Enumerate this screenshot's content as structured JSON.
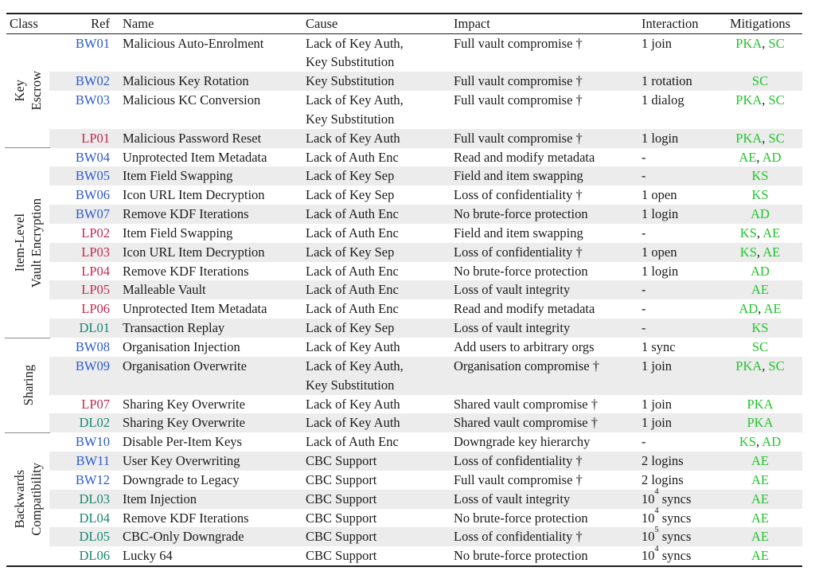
{
  "table": {
    "columns": [
      "Class",
      "Ref",
      "Name",
      "Cause",
      "Impact",
      "Interaction",
      "Mitigations"
    ],
    "colors": {
      "ref_bw": "#2D5AC8",
      "ref_lp": "#C12950",
      "ref_dl": "#16876E",
      "mitigation_green": "#23C32D",
      "stripe_gray": "#ECECEC",
      "rule_black": "#1f1f1f"
    },
    "dagger_symbol": "†",
    "groups": [
      {
        "class_label": [
          "Key",
          "Escrow"
        ],
        "rows": [
          {
            "ref": "BW01",
            "name": "Malicious Auto-Enrolment",
            "cause": [
              "Lack of Key Auth,",
              "Key Substitution"
            ],
            "impact": "Full vault compromise †",
            "interaction": "1 join",
            "mitigations": [
              "PKA",
              "SC"
            ]
          },
          {
            "ref": "BW02",
            "name": "Malicious Key Rotation",
            "cause": [
              "Key Substitution"
            ],
            "impact": "Full vault compromise †",
            "interaction": "1 rotation",
            "mitigations": [
              "SC"
            ]
          },
          {
            "ref": "BW03",
            "name": "Malicious KC Conversion",
            "cause": [
              "Lack of Key Auth,",
              "Key Substitution"
            ],
            "impact": "Full vault compromise †",
            "interaction": "1 dialog",
            "mitigations": [
              "PKA",
              "SC"
            ]
          },
          {
            "ref": "LP01",
            "name": "Malicious Password Reset",
            "cause": [
              "Lack of Key Auth"
            ],
            "impact": "Full vault compromise †",
            "interaction": "1 login",
            "mitigations": [
              "PKA",
              "SC"
            ]
          }
        ]
      },
      {
        "class_label": [
          "Item-Level",
          "Vault Encryption"
        ],
        "rows": [
          {
            "ref": "BW04",
            "name": "Unprotected Item Metadata",
            "cause": [
              "Lack of Auth Enc"
            ],
            "impact": "Read and modify metadata",
            "interaction": "-",
            "mitigations": [
              "AE",
              "AD"
            ]
          },
          {
            "ref": "BW05",
            "name": "Item Field Swapping",
            "cause": [
              "Lack of Key Sep"
            ],
            "impact": "Field and item swapping",
            "interaction": "-",
            "mitigations": [
              "KS"
            ]
          },
          {
            "ref": "BW06",
            "name": "Icon URL Item Decryption",
            "cause": [
              "Lack of Key Sep"
            ],
            "impact": "Loss of confidentiality †",
            "interaction": "1 open",
            "mitigations": [
              "KS"
            ]
          },
          {
            "ref": "BW07",
            "name": "Remove KDF Iterations",
            "cause": [
              "Lack of Auth Enc"
            ],
            "impact": "No brute-force protection",
            "interaction": "1 login",
            "mitigations": [
              "AD"
            ]
          },
          {
            "ref": "LP02",
            "name": "Item Field Swapping",
            "cause": [
              "Lack of Auth Enc"
            ],
            "impact": "Field and item swapping",
            "interaction": "-",
            "mitigations": [
              "KS",
              "AE"
            ]
          },
          {
            "ref": "LP03",
            "name": "Icon URL Item Decryption",
            "cause": [
              "Lack of Key Sep"
            ],
            "impact": "Loss of confidentiality †",
            "interaction": "1 open",
            "mitigations": [
              "KS",
              "AE"
            ]
          },
          {
            "ref": "LP04",
            "name": "Remove KDF Iterations",
            "cause": [
              "Lack of Auth Enc"
            ],
            "impact": "No brute-force protection",
            "interaction": "1 login",
            "mitigations": [
              "AD"
            ]
          },
          {
            "ref": "LP05",
            "name": "Malleable Vault",
            "cause": [
              "Lack of Auth Enc"
            ],
            "impact": "Loss of vault integrity",
            "interaction": "-",
            "mitigations": [
              "AE"
            ]
          },
          {
            "ref": "LP06",
            "name": "Unprotected Item Metadata",
            "cause": [
              "Lack of Auth Enc"
            ],
            "impact": "Read and modify metadata",
            "interaction": "-",
            "mitigations": [
              "AD",
              "AE"
            ]
          },
          {
            "ref": "DL01",
            "name": "Transaction Replay",
            "cause": [
              "Lack of Key Sep"
            ],
            "impact": "Loss of vault integrity",
            "interaction": "-",
            "mitigations": [
              "KS"
            ]
          }
        ]
      },
      {
        "class_label": [
          "Sharing"
        ],
        "rows": [
          {
            "ref": "BW08",
            "name": "Organisation Injection",
            "cause": [
              "Lack of Key Auth"
            ],
            "impact": "Add users to arbitrary orgs",
            "interaction": "1 sync",
            "mitigations": [
              "SC"
            ]
          },
          {
            "ref": "BW09",
            "name": "Organisation Overwrite",
            "cause": [
              "Lack of Key Auth,",
              "Key Substitution"
            ],
            "impact": "Organisation compromise †",
            "interaction": "1 join",
            "mitigations": [
              "PKA",
              "SC"
            ]
          },
          {
            "ref": "LP07",
            "name": "Sharing Key Overwrite",
            "cause": [
              "Lack of Key Auth"
            ],
            "impact": "Shared vault compromise †",
            "interaction": "1 join",
            "mitigations": [
              "PKA"
            ]
          },
          {
            "ref": "DL02",
            "name": "Sharing Key Overwrite",
            "cause": [
              "Lack of Key Auth"
            ],
            "impact": "Shared vault compromise †",
            "interaction": "1 join",
            "mitigations": [
              "PKA"
            ]
          }
        ]
      },
      {
        "class_label": [
          "Backwards",
          "Compatibility"
        ],
        "rows": [
          {
            "ref": "BW10",
            "name": "Disable Per-Item Keys",
            "cause": [
              "Lack of Auth Enc"
            ],
            "impact": "Downgrade key hierarchy",
            "interaction": "-",
            "mitigations": [
              "KS",
              "AD"
            ]
          },
          {
            "ref": "BW11",
            "name": "User Key Overwriting",
            "cause": [
              "CBC Support"
            ],
            "impact": "Loss of confidentiality †",
            "interaction": "2 logins",
            "mitigations": [
              "AE"
            ]
          },
          {
            "ref": "BW12",
            "name": "Downgrade to Legacy",
            "cause": [
              "CBC Support"
            ],
            "impact": "Full vault compromise †",
            "interaction": "2 logins",
            "mitigations": [
              "AE"
            ]
          },
          {
            "ref": "DL03",
            "name": "Item Injection",
            "cause": [
              "CBC Support"
            ],
            "impact": "Loss of vault integrity",
            "interaction": "10^4 syncs",
            "mitigations": [
              "AE"
            ]
          },
          {
            "ref": "DL04",
            "name": "Remove KDF Iterations",
            "cause": [
              "CBC Support"
            ],
            "impact": "No brute-force protection",
            "interaction": "10^4 syncs",
            "mitigations": [
              "AE"
            ]
          },
          {
            "ref": "DL05",
            "name": "CBC-Only Downgrade",
            "cause": [
              "CBC Support"
            ],
            "impact": "Loss of confidentiality †",
            "interaction": "10^5 syncs",
            "mitigations": [
              "AE"
            ]
          },
          {
            "ref": "DL06",
            "name": "Lucky 64",
            "cause": [
              "CBC Support"
            ],
            "impact": "No brute-force protection",
            "interaction": "10^4 syncs",
            "mitigations": [
              "AE"
            ]
          }
        ]
      }
    ]
  }
}
